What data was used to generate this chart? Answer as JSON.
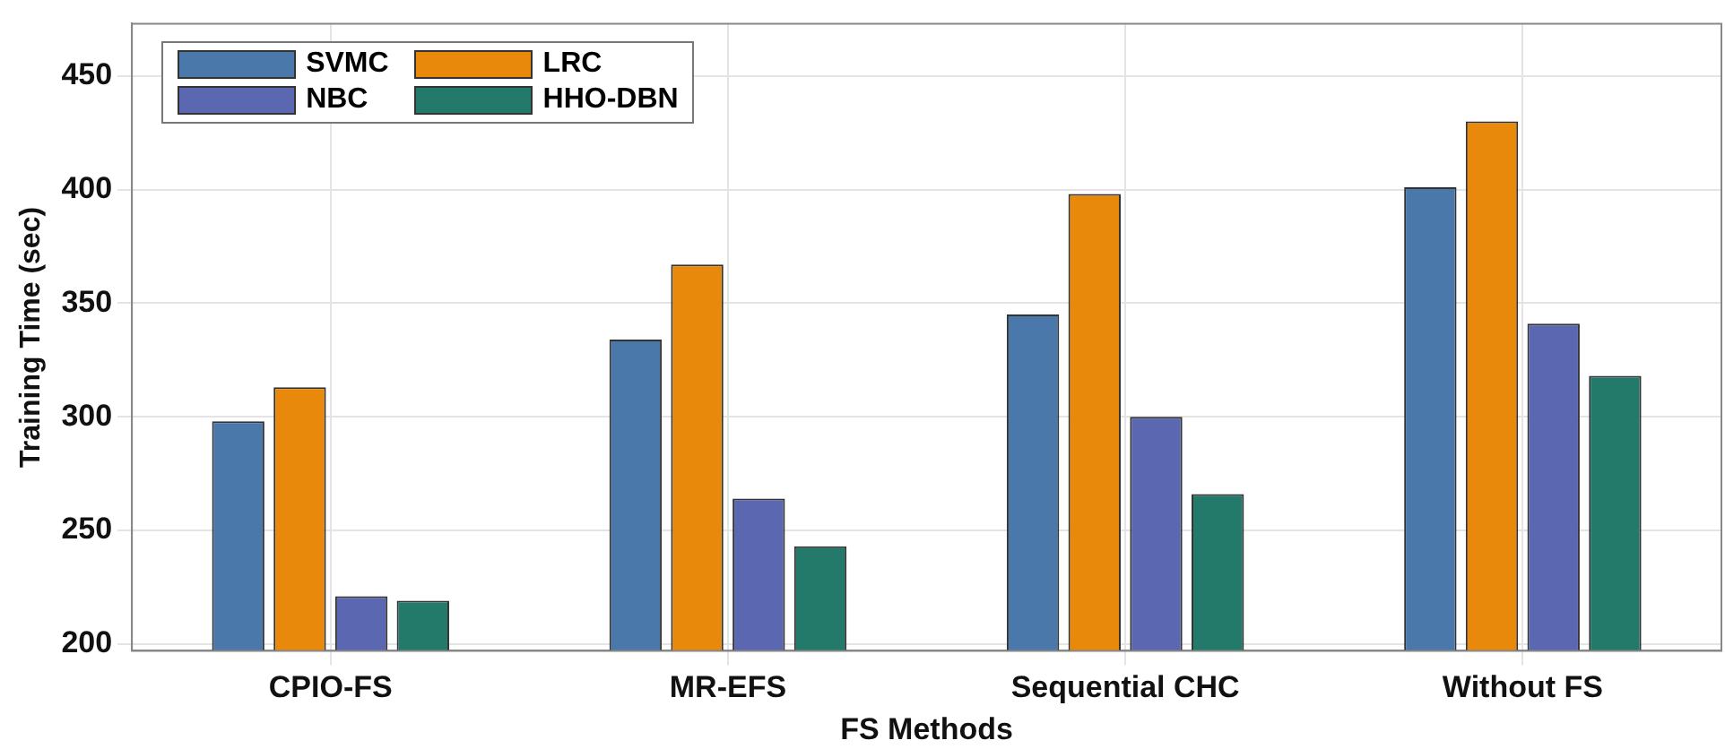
{
  "chart_data": {
    "type": "bar",
    "xlabel": "FS Methods",
    "ylabel": "Training Time (sec)",
    "categories": [
      "CPIO-FS",
      "MR-EFS",
      "Sequential CHC",
      "Without FS"
    ],
    "series": [
      {
        "name": "SVMC",
        "color": "#4a78aa",
        "values": [
          298,
          334,
          345,
          401
        ]
      },
      {
        "name": "LRC",
        "color": "#e8890c",
        "values": [
          313,
          367,
          398,
          430
        ]
      },
      {
        "name": "NBC",
        "color": "#5b67b0",
        "values": [
          221,
          264,
          300,
          341
        ]
      },
      {
        "name": "HHO-DBN",
        "color": "#247a6a",
        "values": [
          219,
          243,
          266,
          318
        ]
      }
    ],
    "ylim": [
      197,
      473
    ],
    "yticks": [
      200,
      250,
      300,
      350,
      400,
      450
    ],
    "grid": true,
    "legend": "top left"
  }
}
